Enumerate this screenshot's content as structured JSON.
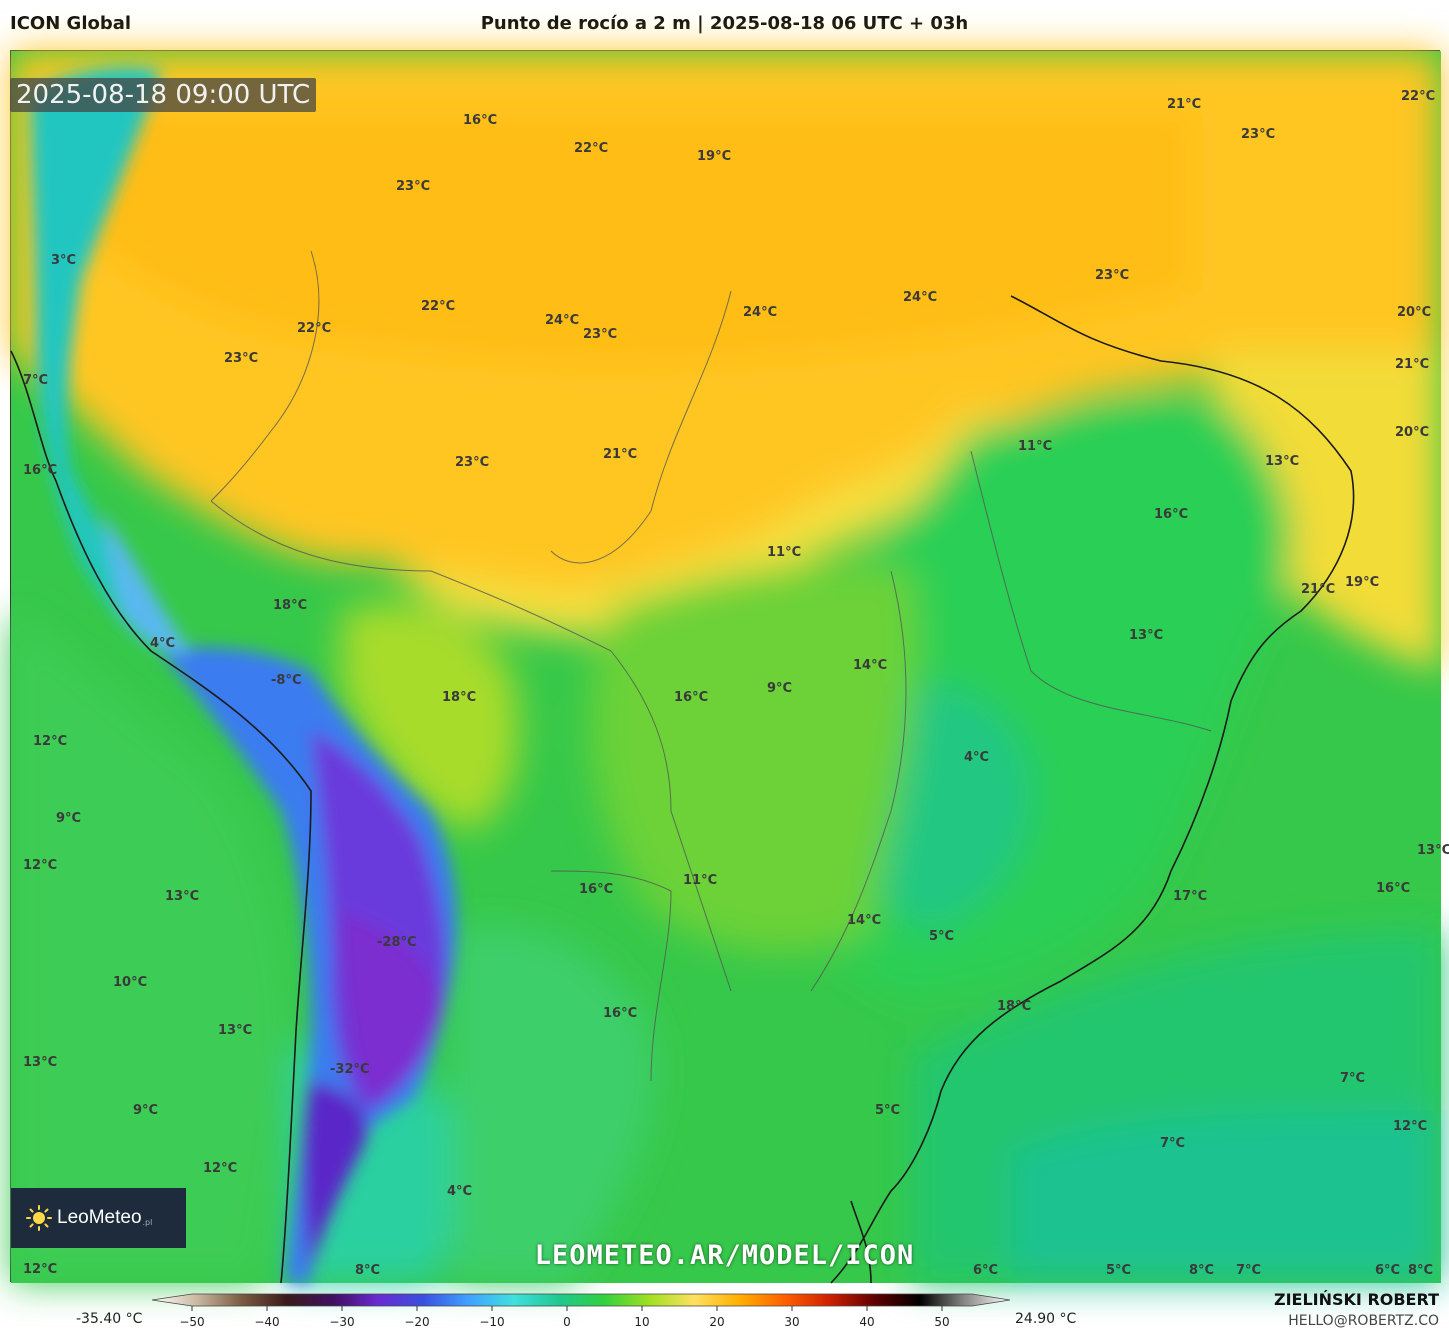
{
  "header": {
    "model": "ICON Global",
    "title": "Punto de rocío a 2 m | 2025-08-18 06 UTC + 03h"
  },
  "map": {
    "valid_time": "2025-08-18 09:00 UTC",
    "watermark": "LEOMETEO.AR/MODEL/ICON",
    "logo": {
      "brand": "LeoMeteo",
      "tld": ".pl"
    },
    "labels": [
      {
        "t": "16°C"
      },
      {
        "t": "22°C"
      },
      {
        "t": "19°C"
      },
      {
        "t": "21°C"
      },
      {
        "t": "23°C"
      },
      {
        "t": "22°C"
      },
      {
        "t": "23°C"
      },
      {
        "t": "3°C"
      },
      {
        "t": "23°C"
      },
      {
        "t": "22°C"
      },
      {
        "t": "24°C"
      },
      {
        "t": "24°C"
      },
      {
        "t": "22°C"
      },
      {
        "t": "24°C"
      },
      {
        "t": "23°C"
      },
      {
        "t": "20°C"
      },
      {
        "t": "23°C"
      },
      {
        "t": "7°C"
      },
      {
        "t": "21°C"
      },
      {
        "t": "23°C"
      },
      {
        "t": "21°C"
      },
      {
        "t": "11°C"
      },
      {
        "t": "20°C"
      },
      {
        "t": "16°C"
      },
      {
        "t": "13°C"
      },
      {
        "t": "16°C"
      },
      {
        "t": "11°C"
      },
      {
        "t": "21°C"
      },
      {
        "t": "19°C"
      },
      {
        "t": "18°C"
      },
      {
        "t": "4°C"
      },
      {
        "t": "13°C"
      },
      {
        "t": "14°C"
      },
      {
        "t": "-8°C"
      },
      {
        "t": "18°C"
      },
      {
        "t": "16°C"
      },
      {
        "t": "9°C"
      },
      {
        "t": "12°C"
      },
      {
        "t": "4°C"
      },
      {
        "t": "9°C"
      },
      {
        "t": "12°C"
      },
      {
        "t": "13°C"
      },
      {
        "t": "16°C"
      },
      {
        "t": "11°C"
      },
      {
        "t": "13°C"
      },
      {
        "t": "17°C"
      },
      {
        "t": "16°C"
      },
      {
        "t": "14°C"
      },
      {
        "t": "-28°C"
      },
      {
        "t": "5°C"
      },
      {
        "t": "10°C"
      },
      {
        "t": "18°C"
      },
      {
        "t": "13°C"
      },
      {
        "t": "16°C"
      },
      {
        "t": "13°C"
      },
      {
        "t": "-32°C"
      },
      {
        "t": "7°C"
      },
      {
        "t": "9°C"
      },
      {
        "t": "5°C"
      },
      {
        "t": "12°C"
      },
      {
        "t": "7°C"
      },
      {
        "t": "12°C"
      },
      {
        "t": "4°C"
      },
      {
        "t": "12°C"
      },
      {
        "t": "8°C"
      },
      {
        "t": "6°C"
      },
      {
        "t": "5°C"
      },
      {
        "t": "8°C"
      },
      {
        "t": "7°C"
      },
      {
        "t": "6°C"
      },
      {
        "t": "8°C"
      }
    ]
  },
  "colorbar": {
    "min_label": "-35.40 °C",
    "max_label": "24.90 °C",
    "ticks": [
      "−50",
      "−40",
      "−30",
      "−20",
      "−10",
      "0",
      "10",
      "20",
      "30",
      "40",
      "50"
    ],
    "stops": [
      "#ffffff",
      "#c8b8a0",
      "#7a5a40",
      "#3a1a1a",
      "#401060",
      "#6a2ad0",
      "#3a50e0",
      "#40a0ff",
      "#40e0e0",
      "#20c890",
      "#30d040",
      "#a0e020",
      "#ffe060",
      "#ffb000",
      "#ff6000",
      "#d02000",
      "#600000",
      "#000000",
      "#888888",
      "#ffffff"
    ]
  },
  "footer": {
    "author": "ZIELIŃSKI ROBERT",
    "email": "HELLO@ROBERTZ.CO"
  }
}
